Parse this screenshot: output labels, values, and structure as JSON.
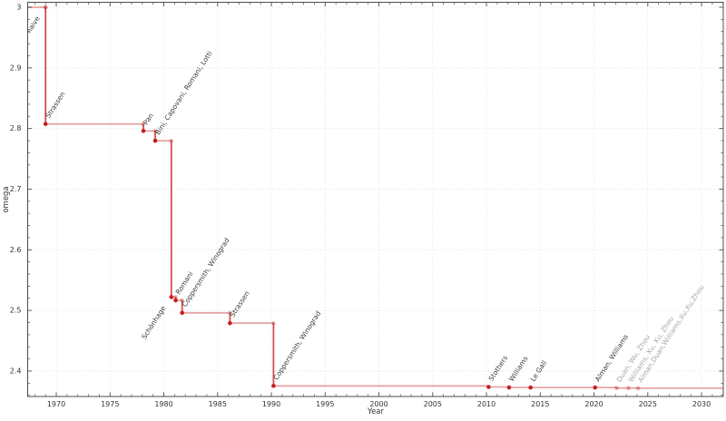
{
  "chart_data": {
    "type": "line",
    "subtype": "step-post",
    "title": "",
    "xlabel": "Year",
    "ylabel": "omega",
    "xlim": [
      1967.34,
      2032.02
    ],
    "ylim": [
      2.358,
      3.0082
    ],
    "x_ticks": [
      1970,
      1975,
      1980,
      1985,
      1990,
      1995,
      2000,
      2005,
      2010,
      2015,
      2020,
      2025,
      2030
    ],
    "y_ticks": [
      2.4,
      2.5,
      2.6,
      2.7,
      2.8,
      2.9,
      3
    ],
    "x_minor_step": 1,
    "y_minor_step": 0.02,
    "grid": true,
    "legend": "none",
    "line_color": "#c41f1f",
    "marker_color": "#c41f1f",
    "label_color": "#3a3a3a",
    "recent_label_color": "#a6a6a6",
    "points": [
      {
        "label": "naive",
        "year": 1969,
        "omega": 3.0,
        "recent": false,
        "marker": "faded",
        "label_side": "below"
      },
      {
        "label": "Strassen",
        "year": 1969,
        "omega": 2.8074,
        "recent": false,
        "marker": "solid",
        "label_side": "above"
      },
      {
        "label": "Pan",
        "year": 1978.1,
        "omega": 2.796,
        "recent": false,
        "marker": "solid",
        "label_side": "above"
      },
      {
        "label": "Bini, Capovani, Romani, Lotti",
        "year": 1979.2,
        "omega": 2.7799,
        "recent": false,
        "marker": "solid",
        "label_side": "above"
      },
      {
        "label": "Schönhage",
        "year": 1980.7,
        "omega": 2.522,
        "recent": false,
        "marker": "solid",
        "label_side": "below"
      },
      {
        "label": "Romani",
        "year": 1981.1,
        "omega": 2.5166,
        "recent": false,
        "marker": "solid",
        "label_side": "above"
      },
      {
        "label": "Coppersmith, Winograd",
        "year": 1981.7,
        "omega": 2.496,
        "recent": false,
        "marker": "solid",
        "label_side": "above"
      },
      {
        "label": "Strassen",
        "year": 1986.15,
        "omega": 2.479,
        "recent": false,
        "marker": "solid",
        "label_side": "above"
      },
      {
        "label": "Coppersmith, Winograd",
        "year": 1990.2,
        "omega": 2.3755,
        "recent": false,
        "marker": "solid",
        "label_side": "above"
      },
      {
        "label": "Stothers",
        "year": 2010.2,
        "omega": 2.3737,
        "recent": false,
        "marker": "solid",
        "label_side": "above"
      },
      {
        "label": "Williams",
        "year": 2012.1,
        "omega": 2.3729,
        "recent": false,
        "marker": "solid",
        "label_side": "above"
      },
      {
        "label": "Le Gall",
        "year": 2014.1,
        "omega": 2.3728639,
        "recent": false,
        "marker": "solid",
        "label_side": "above"
      },
      {
        "label": "Alman, Williams",
        "year": 2020.1,
        "omega": 2.3728596,
        "recent": false,
        "marker": "solid",
        "label_side": "above"
      },
      {
        "label": "Duan, Wu, Zhou",
        "year": 2022.1,
        "omega": 2.37188,
        "recent": true,
        "marker": "faded",
        "label_side": "above"
      },
      {
        "label": "Williams, Xu, Xu, Zhou",
        "year": 2023.2,
        "omega": 2.371866,
        "recent": true,
        "marker": "faded",
        "label_side": "above"
      },
      {
        "label": "Alman,Duan,Williams,Xu,Xu,Zhou",
        "year": 2024.1,
        "omega": 2.371552,
        "recent": true,
        "marker": "faded",
        "label_side": "above"
      }
    ]
  }
}
